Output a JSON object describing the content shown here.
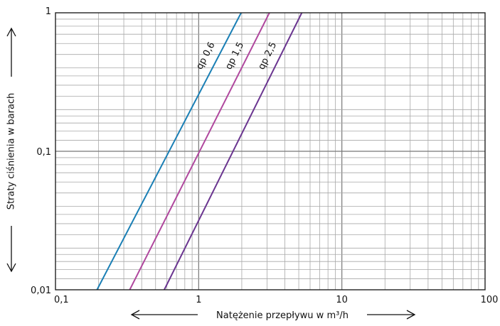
{
  "chart_data": {
    "type": "line",
    "x_scale": "log",
    "y_scale": "log",
    "xlim": [
      0.1,
      100
    ],
    "ylim": [
      0.01,
      1
    ],
    "grid": true,
    "xlabel": "Natężenie przepływu w m³/h",
    "ylabel": "Straty ciśnienia w barach",
    "x_ticks": [
      {
        "value": 0.1,
        "label": "0,1"
      },
      {
        "value": 1,
        "label": "1"
      },
      {
        "value": 10,
        "label": "10"
      },
      {
        "value": 100,
        "label": "100"
      }
    ],
    "y_ticks": [
      {
        "value": 0.01,
        "label": "0,01"
      },
      {
        "value": 0.1,
        "label": "0,1"
      },
      {
        "value": 1,
        "label": "1"
      }
    ],
    "series": [
      {
        "name": "qp 0,6",
        "color": "#1a7fb5",
        "points": [
          [
            0.195,
            0.01
          ],
          [
            1.98,
            1
          ]
        ]
      },
      {
        "name": "qp 1,5",
        "color": "#b0489e",
        "points": [
          [
            0.33,
            0.01
          ],
          [
            3.12,
            1
          ]
        ]
      },
      {
        "name": "qp 2,5",
        "color": "#6a3590",
        "points": [
          [
            0.575,
            0.01
          ],
          [
            5.25,
            1
          ]
        ]
      }
    ]
  }
}
